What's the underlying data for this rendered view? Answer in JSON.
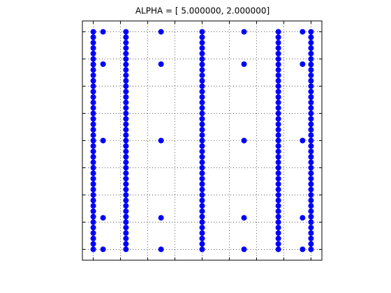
{
  "chart_data": {
    "type": "scatter",
    "title": "ALPHA = [ 5.000000, 2.000000]",
    "color": "#0000ff",
    "grid": true,
    "xlim": [
      -0.4,
      8.4
    ],
    "ylim": [
      -0.4,
      8.4
    ],
    "xticks": [
      0,
      1,
      2,
      3,
      4,
      5,
      6,
      7,
      8
    ],
    "yticks": [
      0,
      1,
      2,
      3,
      4,
      5,
      6,
      7,
      8
    ],
    "series": [
      {
        "x": [
          0,
          0,
          0,
          0,
          0,
          0,
          0,
          0,
          0,
          0,
          0,
          0,
          0,
          0,
          0,
          0,
          0,
          0,
          0,
          0,
          0,
          0,
          0,
          0,
          0,
          0,
          0,
          0,
          0,
          0,
          0,
          0,
          0,
          0,
          0,
          0,
          0,
          0,
          0,
          0,
          0
        ],
        "values": [
          0,
          0.2,
          0.4,
          0.6,
          0.8,
          1,
          1.2,
          1.4,
          1.6,
          1.8,
          2,
          2.2,
          2.4,
          2.6,
          2.8,
          3,
          3.2,
          3.4,
          3.6,
          3.8,
          4,
          4.2,
          4.4,
          4.6,
          4.8,
          5,
          5.2,
          5.4,
          5.6,
          5.8,
          6,
          6.2,
          6.4,
          6.6,
          6.8,
          7,
          7.2,
          7.4,
          7.6,
          7.8,
          8
        ]
      },
      {
        "x": [
          1.2,
          1.2,
          1.2,
          1.2,
          1.2,
          1.2,
          1.2,
          1.2,
          1.2,
          1.2,
          1.2,
          1.2,
          1.2,
          1.2,
          1.2,
          1.2,
          1.2,
          1.2,
          1.2,
          1.2,
          1.2,
          1.2,
          1.2,
          1.2,
          1.2,
          1.2,
          1.2,
          1.2,
          1.2,
          1.2,
          1.2,
          1.2,
          1.2,
          1.2,
          1.2,
          1.2,
          1.2,
          1.2,
          1.2,
          1.2,
          1.2
        ],
        "values": [
          0,
          0.2,
          0.4,
          0.6,
          0.8,
          1,
          1.2,
          1.4,
          1.6,
          1.8,
          2,
          2.2,
          2.4,
          2.6,
          2.8,
          3,
          3.2,
          3.4,
          3.6,
          3.8,
          4,
          4.2,
          4.4,
          4.6,
          4.8,
          5,
          5.2,
          5.4,
          5.6,
          5.8,
          6,
          6.2,
          6.4,
          6.6,
          6.8,
          7,
          7.2,
          7.4,
          7.6,
          7.8,
          8
        ]
      },
      {
        "x": [
          4,
          4,
          4,
          4,
          4,
          4,
          4,
          4,
          4,
          4,
          4,
          4,
          4,
          4,
          4,
          4,
          4,
          4,
          4,
          4,
          4,
          4,
          4,
          4,
          4,
          4,
          4,
          4,
          4,
          4,
          4,
          4,
          4,
          4,
          4,
          4,
          4,
          4,
          4,
          4,
          4
        ],
        "values": [
          0,
          0.2,
          0.4,
          0.6,
          0.8,
          1,
          1.2,
          1.4,
          1.6,
          1.8,
          2,
          2.2,
          2.4,
          2.6,
          2.8,
          3,
          3.2,
          3.4,
          3.6,
          3.8,
          4,
          4.2,
          4.4,
          4.6,
          4.8,
          5,
          5.2,
          5.4,
          5.6,
          5.8,
          6,
          6.2,
          6.4,
          6.6,
          6.8,
          7,
          7.2,
          7.4,
          7.6,
          7.8,
          8
        ]
      },
      {
        "x": [
          6.8,
          6.8,
          6.8,
          6.8,
          6.8,
          6.8,
          6.8,
          6.8,
          6.8,
          6.8,
          6.8,
          6.8,
          6.8,
          6.8,
          6.8,
          6.8,
          6.8,
          6.8,
          6.8,
          6.8,
          6.8,
          6.8,
          6.8,
          6.8,
          6.8,
          6.8,
          6.8,
          6.8,
          6.8,
          6.8,
          6.8,
          6.8,
          6.8,
          6.8,
          6.8,
          6.8,
          6.8,
          6.8,
          6.8,
          6.8,
          6.8
        ],
        "values": [
          0,
          0.2,
          0.4,
          0.6,
          0.8,
          1,
          1.2,
          1.4,
          1.6,
          1.8,
          2,
          2.2,
          2.4,
          2.6,
          2.8,
          3,
          3.2,
          3.4,
          3.6,
          3.8,
          4,
          4.2,
          4.4,
          4.6,
          4.8,
          5,
          5.2,
          5.4,
          5.6,
          5.8,
          6,
          6.2,
          6.4,
          6.6,
          6.8,
          7,
          7.2,
          7.4,
          7.6,
          7.8,
          8
        ]
      },
      {
        "x": [
          8,
          8,
          8,
          8,
          8,
          8,
          8,
          8,
          8,
          8,
          8,
          8,
          8,
          8,
          8,
          8,
          8,
          8,
          8,
          8,
          8,
          8,
          8,
          8,
          8,
          8,
          8,
          8,
          8,
          8,
          8,
          8,
          8,
          8,
          8,
          8,
          8,
          8,
          8,
          8,
          8
        ],
        "values": [
          0,
          0.2,
          0.4,
          0.6,
          0.8,
          1,
          1.2,
          1.4,
          1.6,
          1.8,
          2,
          2.2,
          2.4,
          2.6,
          2.8,
          3,
          3.2,
          3.4,
          3.6,
          3.8,
          4,
          4.2,
          4.4,
          4.6,
          4.8,
          5,
          5.2,
          5.4,
          5.6,
          5.8,
          6,
          6.2,
          6.4,
          6.6,
          6.8,
          7,
          7.2,
          7.4,
          7.6,
          7.8,
          8
        ]
      },
      {
        "x": [
          0.36,
          0.36,
          0.36,
          0.36,
          0.36,
          2.49,
          2.49,
          2.49,
          2.49,
          2.49,
          5.54,
          5.54,
          5.54,
          5.54,
          5.54,
          7.69,
          7.69,
          7.69,
          7.69,
          7.69
        ],
        "values": [
          0,
          1.16,
          4,
          6.81,
          8,
          0,
          1.16,
          4,
          6.81,
          8,
          0,
          1.16,
          4,
          6.81,
          8,
          0,
          1.16,
          4,
          6.81,
          8
        ]
      }
    ]
  }
}
